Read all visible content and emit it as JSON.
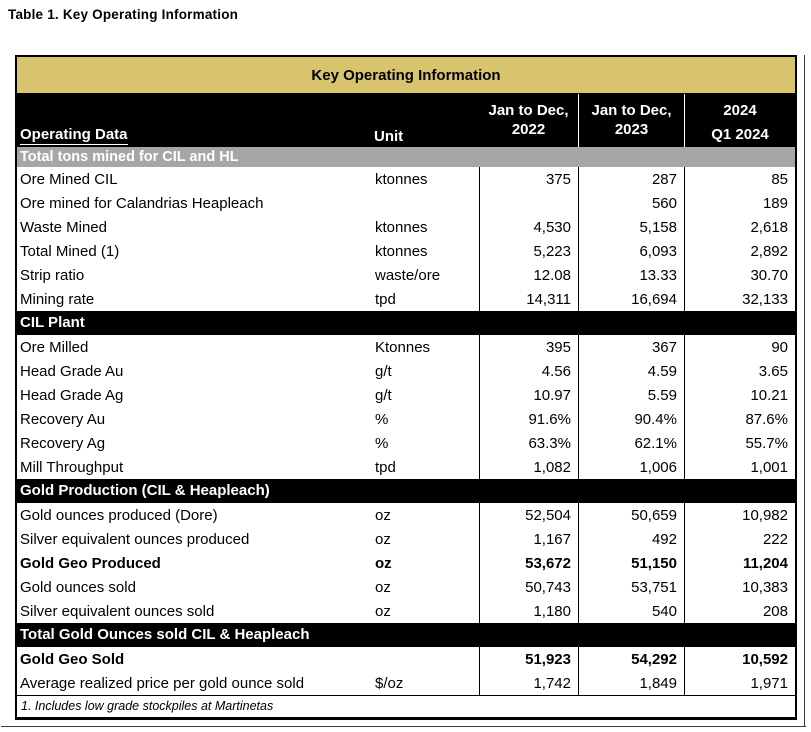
{
  "page_title": "Table 1. Key Operating Information",
  "colors": {
    "banner_gold": "#D8C46D",
    "section_gray": "#A6A6A6",
    "section_black": "#000000"
  },
  "table": {
    "title": "Key Operating Information",
    "header": {
      "label_col": "Operating Data",
      "unit_col": "Unit",
      "data_cols": [
        {
          "lines": [
            "Jan to Dec,",
            "2022"
          ],
          "spread": false
        },
        {
          "lines": [
            "Jan to Dec,",
            "2023"
          ],
          "spread": false
        },
        {
          "lines": [
            "2024",
            "Q1 2024"
          ],
          "spread": true
        }
      ]
    },
    "sections": [
      {
        "band": "Total tons mined for CIL and HL",
        "style": "gray",
        "rows": [
          {
            "label": "Ore Mined CIL",
            "unit": "ktonnes",
            "values": [
              "375",
              "287",
              "85"
            ],
            "bold": false
          },
          {
            "label": "Ore mined for Calandrias Heapleach",
            "unit": "",
            "values": [
              "",
              "560",
              "189"
            ],
            "bold": false
          },
          {
            "label": "Waste Mined",
            "unit": "ktonnes",
            "values": [
              "4,530",
              "5,158",
              "2,618"
            ],
            "bold": false
          },
          {
            "label": "Total Mined (1)",
            "unit": "ktonnes",
            "values": [
              "5,223",
              "6,093",
              "2,892"
            ],
            "bold": false
          },
          {
            "label": "Strip ratio",
            "unit": "waste/ore",
            "values": [
              "12.08",
              "13.33",
              "30.70"
            ],
            "bold": false
          },
          {
            "label": "Mining rate",
            "unit": "tpd",
            "values": [
              "14,311",
              "16,694",
              "32,133"
            ],
            "bold": false
          }
        ]
      },
      {
        "band": "CIL Plant",
        "style": "black",
        "rows": [
          {
            "label": "Ore Milled",
            "unit": "Ktonnes",
            "values": [
              "395",
              "367",
              "90"
            ],
            "bold": false
          },
          {
            "label": "Head Grade Au",
            "unit": "g/t",
            "values": [
              "4.56",
              "4.59",
              "3.65"
            ],
            "bold": false
          },
          {
            "label": "Head Grade Ag",
            "unit": "g/t",
            "values": [
              "10.97",
              "5.59",
              "10.21"
            ],
            "bold": false
          },
          {
            "label": "Recovery Au",
            "unit": "%",
            "values": [
              "91.6%",
              "90.4%",
              "87.6%"
            ],
            "bold": false
          },
          {
            "label": "Recovery Ag",
            "unit": "%",
            "values": [
              "63.3%",
              "62.1%",
              "55.7%"
            ],
            "bold": false
          },
          {
            "label": "Mill Throughput",
            "unit": "tpd",
            "values": [
              "1,082",
              "1,006",
              "1,001"
            ],
            "bold": false
          }
        ]
      },
      {
        "band": "Gold Production (CIL & Heapleach)",
        "style": "black",
        "rows": [
          {
            "label": "Gold ounces produced (Dore)",
            "unit": "oz",
            "values": [
              "52,504",
              "50,659",
              "10,982"
            ],
            "bold": false
          },
          {
            "label": "Silver equivalent ounces produced",
            "unit": "oz",
            "values": [
              "1,167",
              "492",
              "222"
            ],
            "bold": false
          },
          {
            "label": "Gold Geo Produced",
            "unit": "oz",
            "values": [
              "53,672",
              "51,150",
              "11,204"
            ],
            "bold": true
          },
          {
            "label": "Gold ounces sold",
            "unit": "oz",
            "values": [
              "50,743",
              "53,751",
              "10,383"
            ],
            "bold": false
          },
          {
            "label": "Silver equivalent ounces sold",
            "unit": "oz",
            "values": [
              "1,180",
              "540",
              "208"
            ],
            "bold": false
          }
        ]
      },
      {
        "band": "Total Gold Ounces sold CIL & Heapleach",
        "style": "black",
        "rows": [
          {
            "label": "Gold Geo Sold",
            "unit": "",
            "values": [
              "51,923",
              "54,292",
              "10,592"
            ],
            "bold": true
          },
          {
            "label": "Average realized price per gold ounce sold",
            "unit": "$/oz",
            "values": [
              "1,742",
              "1,849",
              "1,971"
            ],
            "bold": false
          }
        ]
      }
    ],
    "footnote": "1. Includes low grade stockpiles at Martinetas"
  }
}
